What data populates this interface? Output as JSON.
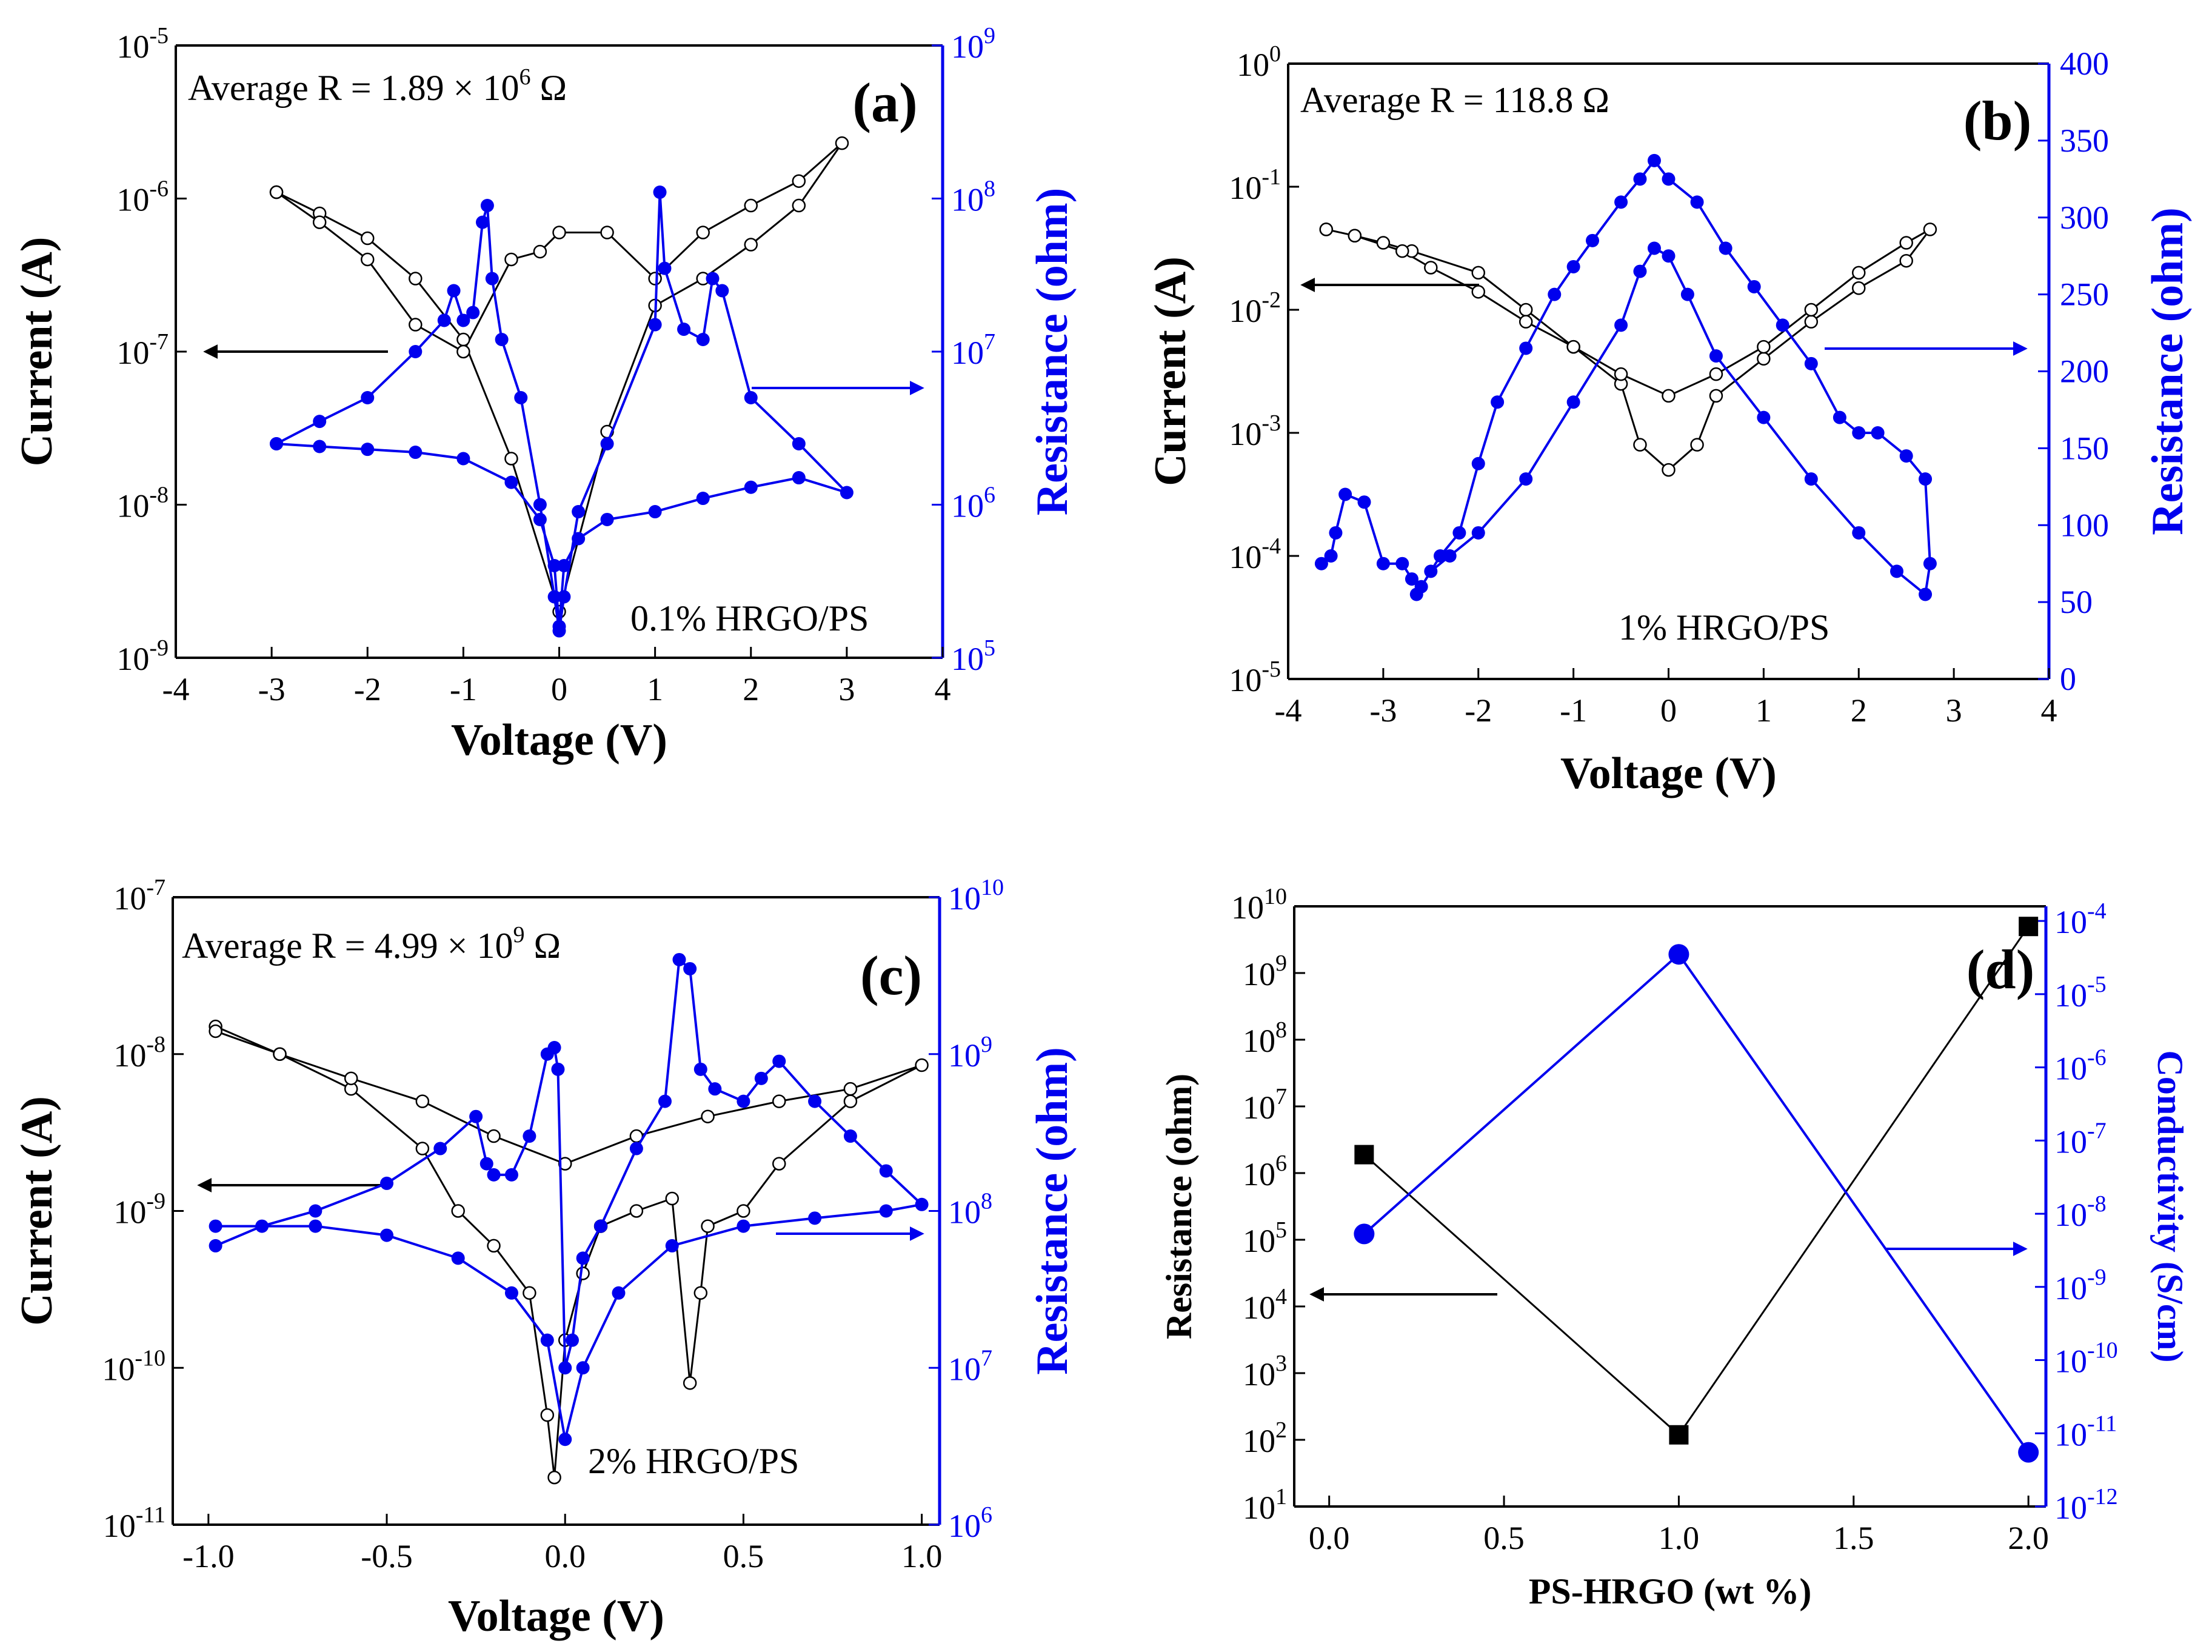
{
  "chart_data": [
    {
      "id": "a",
      "type": "scatter",
      "panel_label": "(a)",
      "annotation": "Average R = 1.89 × 10^6 Ω",
      "annotation_parts": [
        "Average R = 1.89 × 10",
        "6",
        " Ω"
      ],
      "sample_label": "0.1% HRGO/PS",
      "xlabel": "Voltage (V)",
      "ylabel_left": "Current (A)",
      "ylabel_right": "Resistance (ohm)",
      "xlim": [
        -4,
        4
      ],
      "xticks": [
        "-4",
        "-3",
        "-2",
        "-1",
        "0",
        "1",
        "2",
        "3",
        "4"
      ],
      "y_left_scale": "log",
      "y_left_lim_exp": [
        -9,
        -5
      ],
      "y_left_ticks": [
        {
          "base": "10",
          "exp": "-9"
        },
        {
          "base": "10",
          "exp": "-8"
        },
        {
          "base": "10",
          "exp": "-7"
        },
        {
          "base": "10",
          "exp": "-6"
        },
        {
          "base": "10",
          "exp": "-5"
        }
      ],
      "y_right_scale": "log",
      "y_right_lim_exp": [
        5,
        9
      ],
      "y_right_ticks": [
        {
          "base": "10",
          "exp": "5"
        },
        {
          "base": "10",
          "exp": "6"
        },
        {
          "base": "10",
          "exp": "7"
        },
        {
          "base": "10",
          "exp": "8"
        },
        {
          "base": "10",
          "exp": "9"
        }
      ],
      "arrows": [
        {
          "direction": "left",
          "axis": "left"
        },
        {
          "direction": "right",
          "axis": "right"
        }
      ],
      "series": [
        {
          "axis": "left",
          "color": "#000000",
          "marker": "open-circle",
          "x": [
            -2.95,
            -2.5,
            -2.0,
            -1.5,
            -1.0,
            -0.5,
            0.0,
            0.5,
            1.0,
            1.5,
            2.0,
            2.5,
            2.95,
            2.5,
            2.0,
            1.5,
            1.0,
            0.5,
            0.0,
            -0.2,
            -0.5,
            -1.0,
            -1.5,
            -2.0,
            -2.5,
            -2.95
          ],
          "y": [
            1.1e-06,
            8e-07,
            5.5e-07,
            3e-07,
            1.2e-07,
            2e-08,
            2e-09,
            3e-08,
            2e-07,
            3e-07,
            5e-07,
            9e-07,
            2.3e-06,
            1.3e-06,
            9e-07,
            6e-07,
            3e-07,
            6e-07,
            6e-07,
            4.5e-07,
            4e-07,
            1e-07,
            1.5e-07,
            4e-07,
            7e-07,
            1.1e-06
          ]
        },
        {
          "axis": "right",
          "color": "#0000ee",
          "marker": "filled-circle",
          "x": [
            -2.95,
            -2.5,
            -2.0,
            -1.5,
            -1.2,
            -1.1,
            -1.0,
            -0.9,
            -0.8,
            -0.75,
            -0.7,
            -0.6,
            -0.4,
            -0.2,
            -0.05,
            0.0,
            0.05,
            0.2,
            0.5,
            1.0,
            1.05,
            1.1,
            1.3,
            1.5,
            1.6,
            1.7,
            2.0,
            2.5,
            3.0,
            2.5,
            2.0,
            1.5,
            1.0,
            0.5,
            0.2,
            0.05,
            0.0,
            -0.05,
            -0.2,
            -0.5,
            -1.0,
            -1.5,
            -2.0,
            -2.5,
            -2.95
          ],
          "y": [
            2500000.0,
            3500000.0,
            5000000.0,
            10000000.0,
            16000000.0,
            25000000.0,
            16000000.0,
            18000000.0,
            70000000.0,
            90000000.0,
            30000000.0,
            12000000.0,
            5000000.0,
            1000000.0,
            250000.0,
            150000.0,
            250000.0,
            900000.0,
            2500000.0,
            15000000.0,
            110000000.0,
            35000000.0,
            14000000.0,
            12000000.0,
            30000000.0,
            25000000.0,
            5000000.0,
            2500000.0,
            1200000.0,
            1500000.0,
            1300000.0,
            1100000.0,
            900000.0,
            800000.0,
            600000.0,
            400000.0,
            160000.0,
            400000.0,
            800000.0,
            1400000.0,
            2000000.0,
            2200000.0,
            2300000.0,
            2400000.0,
            2500000.0
          ]
        }
      ]
    },
    {
      "id": "b",
      "type": "scatter",
      "panel_label": "(b)",
      "annotation": "Average R = 118.8 Ω",
      "sample_label": "1% HRGO/PS",
      "xlabel": "Voltage (V)",
      "ylabel_left": "Current (A)",
      "ylabel_right": "Resistance (ohm)",
      "xlim": [
        -4,
        4
      ],
      "xticks": [
        "-4",
        "-3",
        "-2",
        "-1",
        "0",
        "1",
        "2",
        "3",
        "4"
      ],
      "y_left_scale": "log",
      "y_left_lim_exp": [
        -5,
        0
      ],
      "y_left_ticks": [
        {
          "base": "10",
          "exp": "-5"
        },
        {
          "base": "10",
          "exp": "-4"
        },
        {
          "base": "10",
          "exp": "-3"
        },
        {
          "base": "10",
          "exp": "-2"
        },
        {
          "base": "10",
          "exp": "-1"
        },
        {
          "base": "10",
          "exp": "0"
        }
      ],
      "y_right_scale": "linear",
      "y_right_lim": [
        0,
        400
      ],
      "y_right_ticks": [
        "0",
        "50",
        "100",
        "150",
        "200",
        "250",
        "300",
        "350",
        "400"
      ],
      "arrows": [
        {
          "direction": "left",
          "axis": "left"
        },
        {
          "direction": "right",
          "axis": "right"
        }
      ],
      "series": [
        {
          "axis": "left",
          "color": "#000000",
          "marker": "open-circle",
          "x": [
            -3.6,
            -3.3,
            -3.0,
            -2.7,
            -2.0,
            -1.5,
            -1.0,
            -0.5,
            -0.3,
            0.0,
            0.3,
            0.5,
            1.0,
            1.5,
            2.0,
            2.5,
            2.75,
            2.5,
            2.0,
            1.5,
            1.0,
            0.5,
            0.0,
            -0.5,
            -1.0,
            -1.5,
            -2.0,
            -2.5,
            -2.8,
            -3.3,
            -3.6
          ],
          "y": [
            0.045,
            0.04,
            0.035,
            0.03,
            0.02,
            0.01,
            0.005,
            0.0025,
            0.0008,
            0.0005,
            0.0008,
            0.002,
            0.004,
            0.008,
            0.015,
            0.025,
            0.045,
            0.035,
            0.02,
            0.01,
            0.005,
            0.003,
            0.002,
            0.003,
            0.005,
            0.008,
            0.014,
            0.022,
            0.03,
            0.04,
            0.045
          ]
        },
        {
          "axis": "right",
          "color": "#0000ee",
          "marker": "filled-circle",
          "x": [
            -3.65,
            -3.55,
            -3.5,
            -3.4,
            -3.2,
            -3.0,
            -2.8,
            -2.7,
            -2.6,
            -2.4,
            -2.2,
            -2.0,
            -1.8,
            -1.5,
            -1.2,
            -1.0,
            -0.8,
            -0.5,
            -0.3,
            -0.15,
            0.0,
            0.3,
            0.6,
            0.9,
            1.2,
            1.5,
            1.8,
            2.0,
            2.2,
            2.5,
            2.7,
            2.75,
            2.7,
            2.4,
            2.0,
            1.5,
            1.0,
            0.5,
            0.2,
            0.0,
            -0.15,
            -0.3,
            -0.5,
            -1.0,
            -1.5,
            -2.0,
            -2.3,
            -2.5,
            -2.65
          ],
          "y": [
            75,
            80,
            95,
            120,
            115,
            75,
            75,
            65,
            60,
            80,
            95,
            140,
            180,
            215,
            250,
            268,
            285,
            310,
            325,
            337,
            325,
            310,
            280,
            255,
            230,
            205,
            170,
            160,
            160,
            145,
            130,
            75,
            55,
            70,
            95,
            130,
            170,
            210,
            250,
            275,
            280,
            265,
            230,
            180,
            130,
            95,
            80,
            70,
            55
          ]
        }
      ]
    },
    {
      "id": "c",
      "type": "scatter",
      "panel_label": "(c)",
      "annotation": "Average R = 4.99 × 10^9 Ω",
      "annotation_parts": [
        "Average R = 4.99 × 10",
        "9",
        " Ω"
      ],
      "sample_label": "2% HRGO/PS",
      "xlabel": "Voltage (V)",
      "ylabel_left": "Current (A)",
      "ylabel_right": "Resistance (ohm)",
      "xlim": [
        -1.1,
        1.05
      ],
      "xticks": [
        "-1.0",
        "-0.5",
        "0.0",
        "0.5",
        "1.0"
      ],
      "xtick_values": [
        -1.0,
        -0.5,
        0.0,
        0.5,
        1.0
      ],
      "y_left_scale": "log",
      "y_left_lim_exp": [
        -11,
        -7
      ],
      "y_left_ticks": [
        {
          "base": "10",
          "exp": "-11"
        },
        {
          "base": "10",
          "exp": "-10"
        },
        {
          "base": "10",
          "exp": "-9"
        },
        {
          "base": "10",
          "exp": "-8"
        },
        {
          "base": "10",
          "exp": "-7"
        }
      ],
      "y_right_scale": "log",
      "y_right_lim_exp": [
        6,
        10
      ],
      "y_right_ticks": [
        {
          "base": "10",
          "exp": "6"
        },
        {
          "base": "10",
          "exp": "7"
        },
        {
          "base": "10",
          "exp": "8"
        },
        {
          "base": "10",
          "exp": "9"
        },
        {
          "base": "10",
          "exp": "10"
        }
      ],
      "arrows": [
        {
          "direction": "left",
          "axis": "left"
        },
        {
          "direction": "right",
          "axis": "right"
        }
      ],
      "series": [
        {
          "axis": "left",
          "color": "#000000",
          "marker": "open-circle",
          "x": [
            -0.98,
            -0.8,
            -0.6,
            -0.4,
            -0.3,
            -0.2,
            -0.1,
            -0.05,
            -0.03,
            0.0,
            0.05,
            0.1,
            0.2,
            0.3,
            0.35,
            0.38,
            0.4,
            0.5,
            0.6,
            0.8,
            1.0,
            0.8,
            0.6,
            0.4,
            0.2,
            0.0,
            -0.2,
            -0.4,
            -0.6,
            -0.8,
            -0.98
          ],
          "y": [
            1.5e-08,
            1e-08,
            6e-09,
            2.5e-09,
            1e-09,
            6e-10,
            3e-10,
            5e-11,
            2e-11,
            1.5e-10,
            4e-10,
            8e-10,
            1e-09,
            1.2e-09,
            8e-11,
            3e-10,
            8e-10,
            1e-09,
            2e-09,
            5e-09,
            8.5e-09,
            6e-09,
            5e-09,
            4e-09,
            3e-09,
            2e-09,
            3e-09,
            5e-09,
            7e-09,
            1e-08,
            1.4e-08
          ]
        },
        {
          "axis": "right",
          "color": "#0000ee",
          "marker": "filled-circle",
          "x": [
            -0.98,
            -0.85,
            -0.7,
            -0.5,
            -0.35,
            -0.25,
            -0.22,
            -0.2,
            -0.15,
            -0.1,
            -0.05,
            -0.03,
            -0.02,
            0.0,
            0.02,
            0.05,
            0.1,
            0.2,
            0.28,
            0.32,
            0.35,
            0.38,
            0.42,
            0.5,
            0.55,
            0.6,
            0.7,
            0.8,
            0.9,
            1.0,
            0.9,
            0.7,
            0.5,
            0.3,
            0.15,
            0.05,
            0.0,
            -0.05,
            -0.15,
            -0.3,
            -0.5,
            -0.7,
            -0.98
          ],
          "y": [
            60000000.0,
            80000000.0,
            100000000.0,
            150000000.0,
            250000000.0,
            400000000.0,
            200000000.0,
            170000000.0,
            170000000.0,
            300000000.0,
            1000000000.0,
            1100000000.0,
            800000000.0,
            10000000.0,
            15000000.0,
            50000000.0,
            80000000.0,
            250000000.0,
            500000000.0,
            4000000000.0,
            3500000000.0,
            800000000.0,
            600000000.0,
            500000000.0,
            700000000.0,
            900000000.0,
            500000000.0,
            300000000.0,
            180000000.0,
            110000000.0,
            100000000.0,
            90000000.0,
            80000000.0,
            60000000.0,
            30000000.0,
            10000000.0,
            3500000.0,
            15000000.0,
            30000000.0,
            50000000.0,
            70000000.0,
            80000000.0,
            80000000.0
          ]
        }
      ]
    },
    {
      "id": "d",
      "type": "line",
      "panel_label": "(d)",
      "xlabel": "PS-HRGO (wt %)",
      "ylabel_left": "Resistance (ohm)",
      "ylabel_right": "Conductivity (S/cm)",
      "xlim": [
        -0.1,
        2.05
      ],
      "xticks": [
        "0.0",
        "0.5",
        "1.0",
        "1.5",
        "2.0"
      ],
      "xtick_values": [
        0.0,
        0.5,
        1.0,
        1.5,
        2.0
      ],
      "y_left_scale": "log",
      "y_left_lim_exp": [
        1,
        10
      ],
      "y_left_ticks": [
        {
          "base": "10",
          "exp": "1"
        },
        {
          "base": "10",
          "exp": "2"
        },
        {
          "base": "10",
          "exp": "3"
        },
        {
          "base": "10",
          "exp": "4"
        },
        {
          "base": "10",
          "exp": "5"
        },
        {
          "base": "10",
          "exp": "6"
        },
        {
          "base": "10",
          "exp": "7"
        },
        {
          "base": "10",
          "exp": "8"
        },
        {
          "base": "10",
          "exp": "9"
        },
        {
          "base": "10",
          "exp": "10"
        }
      ],
      "y_right_scale": "log",
      "y_right_lim_exp": [
        -12,
        -3.8
      ],
      "y_right_ticks": [
        {
          "base": "10",
          "exp": "-12"
        },
        {
          "base": "10",
          "exp": "-11"
        },
        {
          "base": "10",
          "exp": "-10"
        },
        {
          "base": "10",
          "exp": "-9"
        },
        {
          "base": "10",
          "exp": "-8"
        },
        {
          "base": "10",
          "exp": "-7"
        },
        {
          "base": "10",
          "exp": "-6"
        },
        {
          "base": "10",
          "exp": "-5"
        },
        {
          "base": "10",
          "exp": "-4"
        }
      ],
      "arrows": [
        {
          "direction": "left",
          "axis": "left"
        },
        {
          "direction": "right",
          "axis": "right"
        }
      ],
      "series": [
        {
          "axis": "left",
          "color": "#000000",
          "marker": "filled-square",
          "x": [
            0.1,
            1.0,
            2.0
          ],
          "y": [
            1890000.0,
            118.8,
            4990000000.0
          ]
        },
        {
          "axis": "right",
          "color": "#0000ee",
          "marker": "filled-circle",
          "x": [
            0.1,
            1.0,
            2.0
          ],
          "y": [
            5.3e-09,
            3.5e-05,
            5.5e-12
          ]
        }
      ]
    }
  ],
  "colors": {
    "left_axis": "#000000",
    "right_axis": "#0000ee"
  }
}
